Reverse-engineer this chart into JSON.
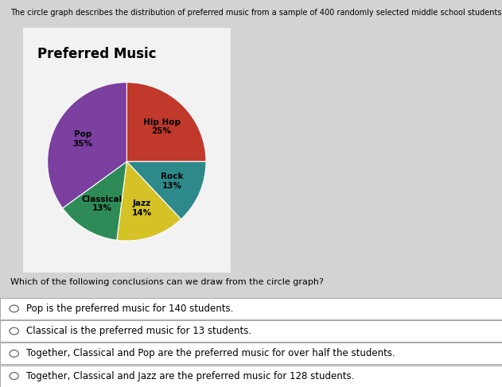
{
  "title": "Preferred Music",
  "description": "The circle graph describes the distribution of preferred music from a sample of 400 randomly selected middle school students.",
  "slices": [
    {
      "label": "Hip Hop",
      "pct": 25,
      "color": "#c0392b"
    },
    {
      "label": "Rock",
      "pct": 13,
      "color": "#2e8a8a"
    },
    {
      "label": "Jazz",
      "pct": 14,
      "color": "#d4c227"
    },
    {
      "label": "Classical",
      "pct": 13,
      "color": "#2e8b57"
    },
    {
      "label": "Pop",
      "pct": 35,
      "color": "#7b3fa0"
    }
  ],
  "question": "Which of the following conclusions can we draw from the circle graph?",
  "options": [
    "Pop is the preferred music for 140 students.",
    "Classical is the preferred music for 13 students.",
    "Together, Classical and Pop are the preferred music for over half the students.",
    "Together, Classical and Jazz are the preferred music for 128 students."
  ],
  "bg_color": "#d3d3d3",
  "card_color": "#f2f2f2",
  "title_fontsize": 12,
  "label_fontsize": 7.5,
  "desc_fontsize": 7.0,
  "question_fontsize": 8.0,
  "option_fontsize": 8.5
}
